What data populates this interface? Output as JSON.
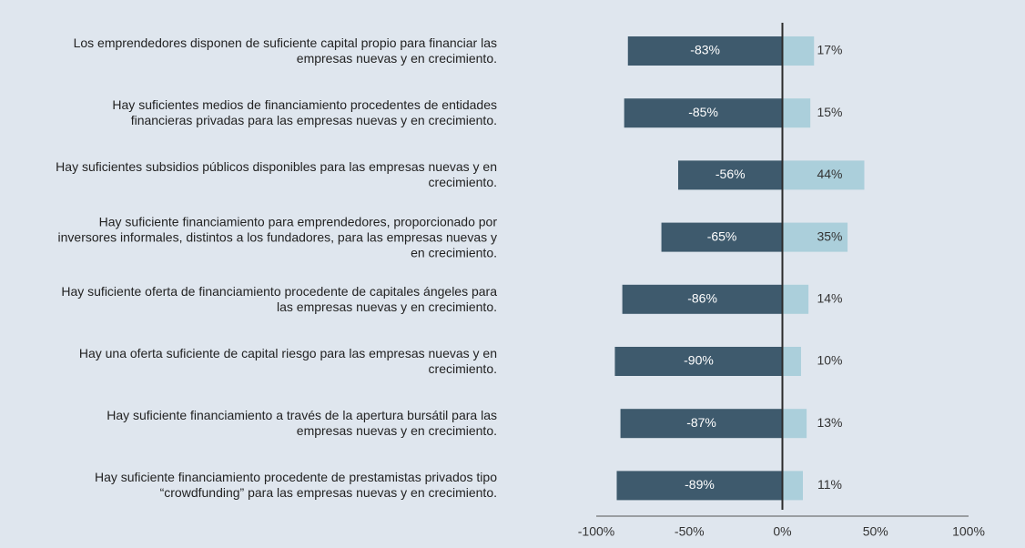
{
  "chart_data": {
    "type": "diverging_bar",
    "categories": [
      "Los emprendedores disponen de suficiente capital propio para financiar las empresas nuevas y en crecimiento.",
      "Hay suficientes medios de financiamiento procedentes de entidades financieras privadas para las empresas nuevas y en crecimiento.",
      "Hay suficientes subsidios públicos disponibles para las empresas nuevas y en crecimiento.",
      "Hay suficiente financiamiento para emprendedores, proporcionado por inversores informales, distintos a los fundadores, para las empresas nuevas y en crecimiento.",
      "Hay suficiente oferta de financiamiento procedente de capitales ángeles para las empresas nuevas y en crecimiento.",
      "Hay una oferta suficiente de capital riesgo para las empresas nuevas y en crecimiento.",
      "Hay suficiente financiamiento a través de la apertura bursátil para las empresas nuevas y en crecimiento.",
      "Hay suficiente financiamiento procedente de prestamistas privados tipo “crowdfunding” para las empresas nuevas y en crecimiento."
    ],
    "series": [
      {
        "color": "#3e5a6d",
        "values": [
          -83,
          -85,
          -56,
          -65,
          -86,
          -90,
          -87,
          -89
        ],
        "value_labels": [
          "-83%",
          "-85%",
          "-56%",
          "-65%",
          "-86%",
          "-90%",
          "-87%",
          "-89%"
        ]
      },
      {
        "color": "#abcfdb",
        "values": [
          17,
          15,
          44,
          35,
          14,
          10,
          13,
          11
        ],
        "value_labels": [
          "17%",
          "15%",
          "44%",
          "35%",
          "14%",
          "10%",
          "13%",
          "11%"
        ]
      }
    ],
    "xlim": [
      -100,
      100
    ],
    "xticks": [
      {
        "value": -100,
        "label": "-100%"
      },
      {
        "value": -50,
        "label": "-50%"
      },
      {
        "value": 0,
        "label": "0%"
      },
      {
        "value": 50,
        "label": "50%"
      },
      {
        "value": 100,
        "label": "100%"
      }
    ]
  }
}
